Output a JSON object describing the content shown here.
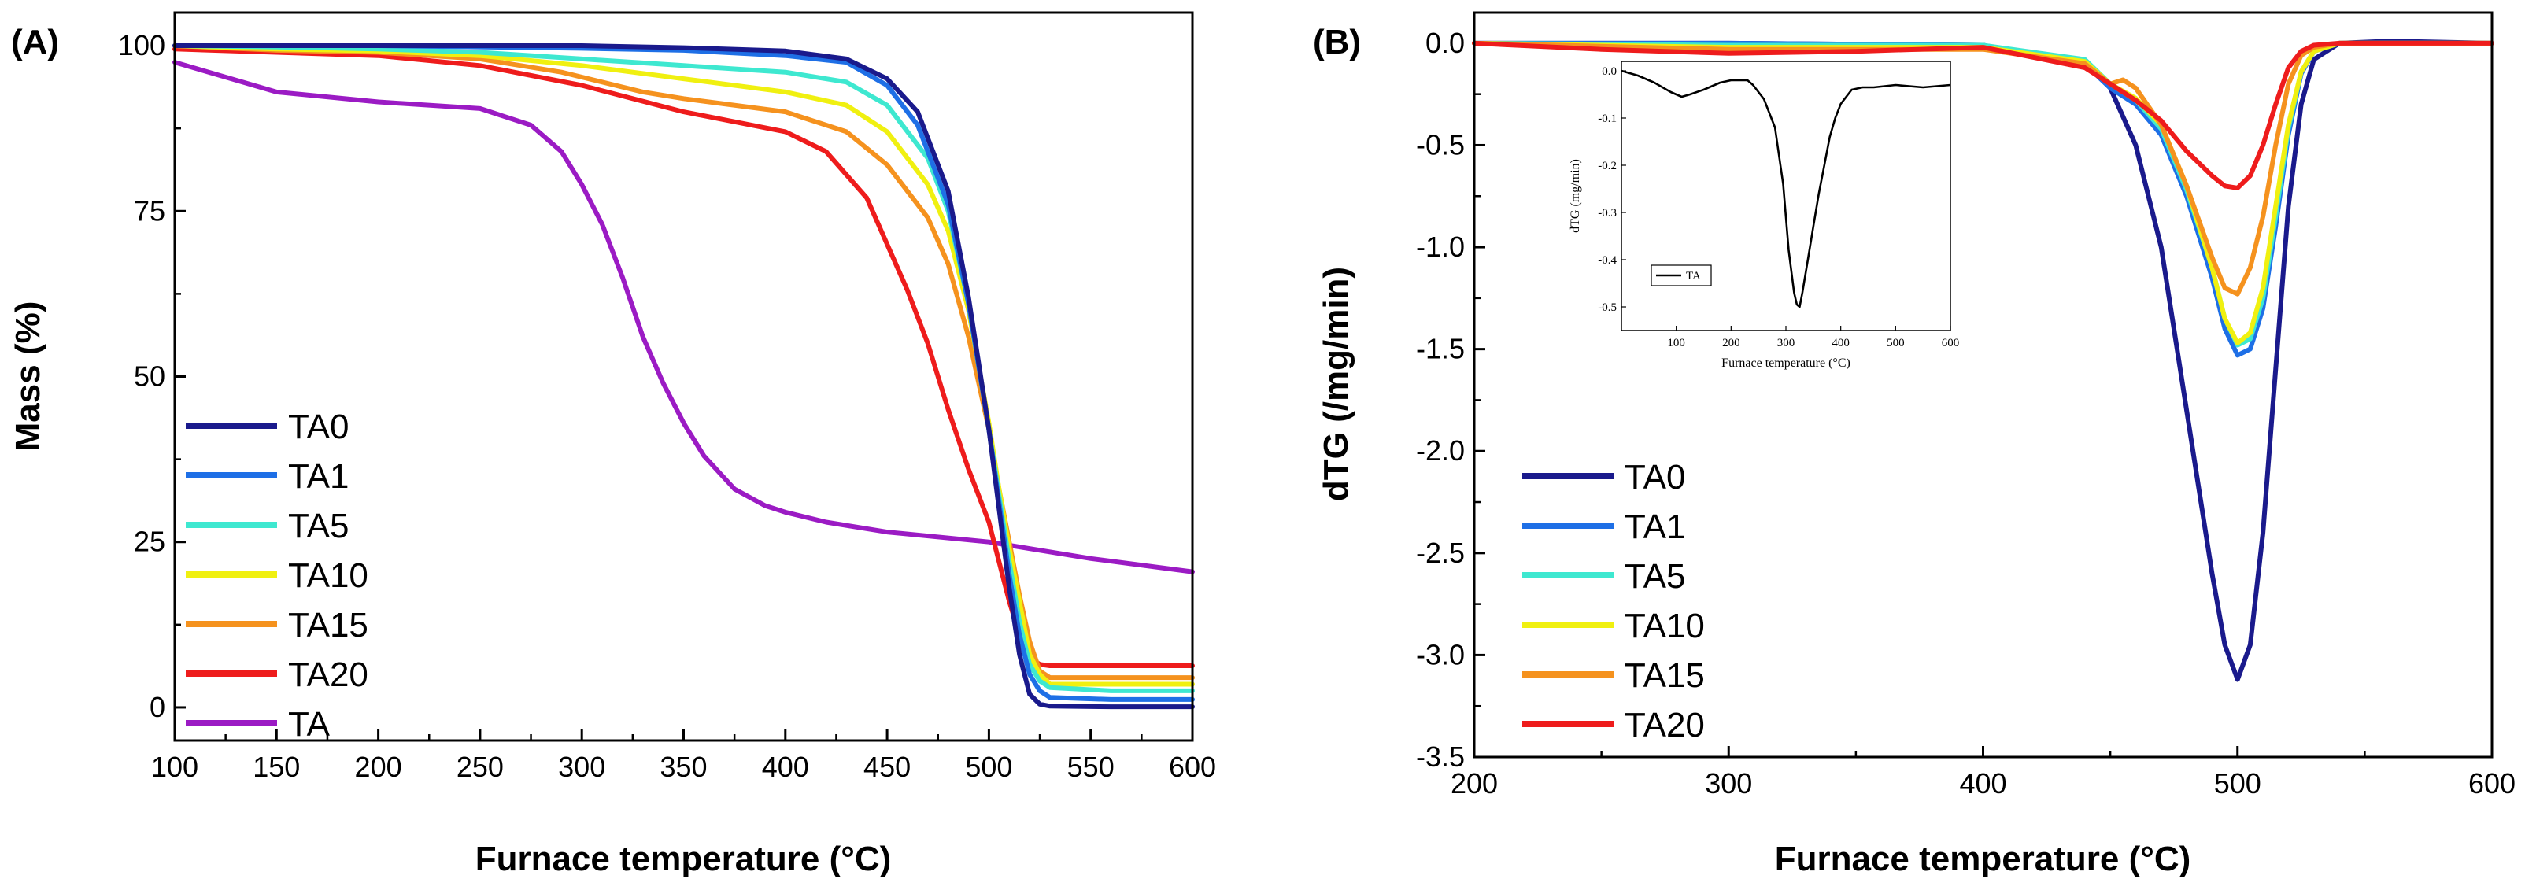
{
  "chart_data": [
    {
      "panel": "(A)",
      "type": "line",
      "title": "",
      "xlabel": "Furnace temperature (°C)",
      "ylabel": "Mass (%)",
      "xlim": [
        100,
        600
      ],
      "ylim": [
        -5,
        105
      ],
      "xticks": [
        100,
        150,
        200,
        250,
        300,
        350,
        400,
        450,
        500,
        550,
        600
      ],
      "yticks": [
        0,
        25,
        50,
        75,
        100
      ],
      "legend_position": "bottom-left",
      "series": [
        {
          "name": "TA0",
          "color": "#1a1a8c",
          "x": [
            100,
            200,
            300,
            350,
            400,
            430,
            450,
            465,
            480,
            490,
            500,
            505,
            510,
            515,
            520,
            525,
            530,
            560,
            600
          ],
          "y": [
            100,
            100,
            100,
            99.7,
            99.2,
            98,
            95,
            90,
            78,
            62,
            42,
            30,
            18,
            8,
            2,
            0.5,
            0.2,
            0.1,
            0.1
          ]
        },
        {
          "name": "TA1",
          "color": "#1e6fe6",
          "x": [
            100,
            200,
            300,
            350,
            400,
            430,
            450,
            465,
            480,
            490,
            500,
            505,
            510,
            515,
            520,
            525,
            530,
            560,
            600
          ],
          "y": [
            100,
            100,
            99.6,
            99.3,
            98.5,
            97.5,
            94,
            88,
            76,
            61,
            42,
            31,
            20,
            11,
            5,
            2.5,
            1.5,
            1.2,
            1.2
          ]
        },
        {
          "name": "TA5",
          "color": "#3ee8d0",
          "x": [
            100,
            150,
            200,
            250,
            300,
            350,
            400,
            430,
            450,
            470,
            480,
            490,
            500,
            505,
            510,
            515,
            520,
            525,
            530,
            560,
            600
          ],
          "y": [
            100,
            99.8,
            99.5,
            99,
            98,
            97,
            96,
            94.5,
            91,
            83,
            75,
            61,
            42,
            32,
            22,
            13,
            6.5,
            4,
            3,
            2.5,
            2.5
          ]
        },
        {
          "name": "TA10",
          "color": "#f0f010",
          "x": [
            100,
            150,
            200,
            250,
            300,
            350,
            400,
            430,
            450,
            470,
            480,
            490,
            500,
            505,
            510,
            515,
            520,
            525,
            530,
            560,
            600
          ],
          "y": [
            100,
            99.5,
            99.2,
            98.5,
            97,
            95,
            93,
            91,
            87,
            79,
            72,
            60,
            43,
            33,
            24,
            16,
            8,
            5,
            3.5,
            3.5,
            3.5
          ]
        },
        {
          "name": "TA15",
          "color": "#f5921e",
          "x": [
            100,
            150,
            200,
            250,
            290,
            330,
            350,
            400,
            430,
            450,
            470,
            480,
            490,
            500,
            505,
            510,
            515,
            520,
            525,
            530,
            560,
            600
          ],
          "y": [
            100,
            99.3,
            99,
            98,
            96,
            93,
            92,
            90,
            87,
            82,
            74,
            67,
            56,
            42,
            33,
            25,
            17,
            10,
            5.5,
            4.5,
            4.5,
            4.5
          ]
        },
        {
          "name": "TA20",
          "color": "#ee1c1c",
          "x": [
            100,
            150,
            200,
            250,
            300,
            350,
            400,
            420,
            440,
            460,
            470,
            480,
            490,
            500,
            505,
            510,
            515,
            520,
            525,
            530,
            560,
            600
          ],
          "y": [
            99.5,
            99,
            98.5,
            97,
            94,
            90,
            87,
            84,
            77,
            63,
            55,
            45,
            36,
            28,
            22,
            16,
            11,
            7.5,
            6.5,
            6.3,
            6.3,
            6.3
          ]
        },
        {
          "name": "TA",
          "color": "#9b1bc4",
          "x": [
            100,
            150,
            200,
            250,
            275,
            290,
            300,
            310,
            320,
            330,
            340,
            350,
            360,
            375,
            390,
            400,
            420,
            450,
            500,
            550,
            600
          ],
          "y": [
            97.5,
            93,
            91.5,
            90.5,
            88,
            84,
            79,
            73,
            65,
            56,
            49,
            43,
            38,
            33,
            30.5,
            29.5,
            28,
            26.5,
            25,
            22.5,
            20.5
          ]
        }
      ]
    },
    {
      "panel": "(B)",
      "type": "line",
      "title": "",
      "xlabel": "Furnace temperature (°C)",
      "ylabel": "dTG (/mg/min)",
      "xlim": [
        200,
        600
      ],
      "ylim": [
        -3.5,
        0.15
      ],
      "xticks": [
        200,
        300,
        400,
        500,
        600
      ],
      "yticks": [
        0.0,
        -0.5,
        -1.0,
        -1.5,
        -2.0,
        -2.5,
        -3.0,
        -3.5
      ],
      "ytick_labels": [
        "0.0",
        "-0.5",
        "-1.0",
        "-1.5",
        "-2.0",
        "-2.5",
        "-3.0",
        "-3.5"
      ],
      "legend_position": "bottom-left",
      "series": [
        {
          "name": "TA0",
          "color": "#1a1a8c",
          "x": [
            200,
            300,
            400,
            440,
            450,
            460,
            470,
            480,
            490,
            495,
            500,
            505,
            510,
            515,
            520,
            525,
            530,
            540,
            560,
            600
          ],
          "y": [
            0,
            0,
            -0.01,
            -0.1,
            -0.22,
            -0.5,
            -1.0,
            -1.8,
            -2.6,
            -2.95,
            -3.12,
            -2.95,
            -2.4,
            -1.6,
            -0.8,
            -0.3,
            -0.08,
            0,
            0.01,
            0
          ]
        },
        {
          "name": "TA1",
          "color": "#1e6fe6",
          "x": [
            200,
            300,
            400,
            440,
            450,
            460,
            470,
            480,
            490,
            495,
            500,
            505,
            510,
            515,
            520,
            525,
            530,
            540,
            560,
            600
          ],
          "y": [
            0,
            0,
            -0.01,
            -0.1,
            -0.22,
            -0.3,
            -0.45,
            -0.75,
            -1.15,
            -1.4,
            -1.53,
            -1.5,
            -1.3,
            -0.9,
            -0.45,
            -0.15,
            -0.04,
            0,
            0,
            0
          ]
        },
        {
          "name": "TA5",
          "color": "#3ee8d0",
          "x": [
            200,
            300,
            400,
            440,
            450,
            460,
            470,
            480,
            490,
            495,
            500,
            505,
            510,
            515,
            520,
            525,
            530,
            540,
            560,
            600
          ],
          "y": [
            0,
            -0.01,
            -0.01,
            -0.08,
            -0.2,
            -0.28,
            -0.42,
            -0.72,
            -1.1,
            -1.35,
            -1.48,
            -1.45,
            -1.25,
            -0.85,
            -0.42,
            -0.14,
            -0.04,
            0,
            0,
            0
          ]
        },
        {
          "name": "TA10",
          "color": "#f0f010",
          "x": [
            200,
            300,
            400,
            440,
            450,
            460,
            470,
            480,
            490,
            495,
            500,
            505,
            510,
            515,
            520,
            525,
            530,
            540,
            560,
            600
          ],
          "y": [
            0,
            -0.02,
            -0.02,
            -0.09,
            -0.2,
            -0.27,
            -0.4,
            -0.7,
            -1.1,
            -1.35,
            -1.47,
            -1.42,
            -1.2,
            -0.8,
            -0.4,
            -0.14,
            -0.04,
            0,
            0,
            0
          ]
        },
        {
          "name": "TA15",
          "color": "#f5921e",
          "x": [
            200,
            300,
            400,
            440,
            450,
            455,
            460,
            470,
            480,
            490,
            495,
            500,
            505,
            510,
            515,
            520,
            525,
            530,
            540,
            560,
            600
          ],
          "y": [
            0,
            -0.03,
            -0.03,
            -0.1,
            -0.2,
            -0.18,
            -0.22,
            -0.4,
            -0.7,
            -1.05,
            -1.2,
            -1.23,
            -1.1,
            -0.85,
            -0.5,
            -0.2,
            -0.06,
            -0.02,
            0,
            0,
            0
          ]
        },
        {
          "name": "TA20",
          "color": "#ee1c1c",
          "x": [
            200,
            250,
            300,
            350,
            400,
            440,
            450,
            460,
            470,
            480,
            490,
            495,
            500,
            505,
            510,
            515,
            520,
            525,
            530,
            540,
            560,
            600
          ],
          "y": [
            0,
            -0.03,
            -0.05,
            -0.04,
            -0.02,
            -0.12,
            -0.2,
            -0.28,
            -0.38,
            -0.53,
            -0.65,
            -0.7,
            -0.71,
            -0.65,
            -0.5,
            -0.3,
            -0.12,
            -0.04,
            -0.01,
            0,
            0,
            0
          ]
        }
      ],
      "inset": {
        "type": "line",
        "xlabel": "Furnace temperature (°C)",
        "ylabel": "dTG (mg/min)",
        "xlim": [
          0,
          600
        ],
        "ylim": [
          -0.55,
          0.02
        ],
        "xticks": [
          100,
          200,
          300,
          400,
          500,
          600
        ],
        "yticks": [
          0.0,
          -0.1,
          -0.2,
          -0.3,
          -0.4,
          -0.5
        ],
        "ytick_labels": [
          "0.0",
          "-0.1",
          "-0.2",
          "-0.3",
          "-0.4",
          "-0.5"
        ],
        "legend_position": "bottom-left",
        "series": [
          {
            "name": "TA",
            "color": "#000000",
            "x": [
              0,
              30,
              60,
              90,
              110,
              125,
              150,
              180,
              200,
              210,
              230,
              240,
              260,
              280,
              295,
              305,
              315,
              320,
              325,
              330,
              340,
              350,
              360,
              370,
              380,
              390,
              400,
              420,
              440,
              460,
              500,
              550,
              600
            ],
            "y": [
              0,
              -0.01,
              -0.025,
              -0.045,
              -0.055,
              -0.05,
              -0.04,
              -0.025,
              -0.02,
              -0.02,
              -0.02,
              -0.03,
              -0.06,
              -0.12,
              -0.24,
              -0.38,
              -0.47,
              -0.495,
              -0.5,
              -0.47,
              -0.4,
              -0.33,
              -0.26,
              -0.2,
              -0.14,
              -0.1,
              -0.07,
              -0.04,
              -0.035,
              -0.035,
              -0.03,
              -0.035,
              -0.03
            ]
          }
        ]
      }
    }
  ]
}
